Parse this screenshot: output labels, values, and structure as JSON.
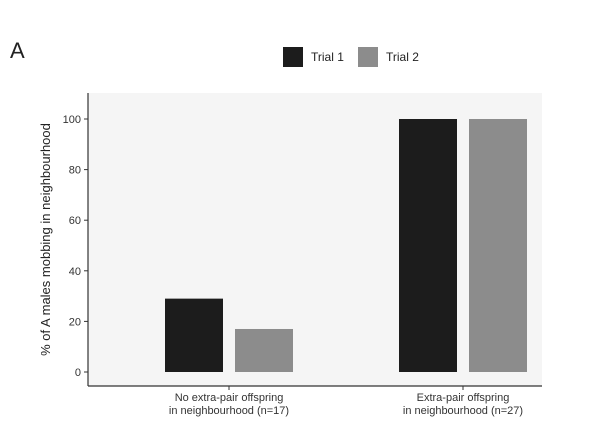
{
  "panel_label": "A",
  "chart_data": {
    "type": "bar",
    "categories": [
      [
        "No extra-pair offspring",
        "in neighbourhood (n=17)"
      ],
      [
        "Extra-pair offspring",
        "in neighbourhood (n=27)"
      ]
    ],
    "series": [
      {
        "name": "Trial 1",
        "color": "#1c1c1c",
        "values": [
          29,
          100
        ]
      },
      {
        "name": "Trial 2",
        "color": "#8c8c8c",
        "values": [
          17,
          100
        ]
      }
    ],
    "xlabel": "",
    "ylabel": "% of A males mobbing in neighbourhood",
    "ylim": [
      0,
      100
    ],
    "yticks": [
      0,
      20,
      40,
      60,
      80,
      100
    ],
    "grid": false,
    "legend_position": "top-center",
    "panel_background": "#f5f5f5"
  }
}
